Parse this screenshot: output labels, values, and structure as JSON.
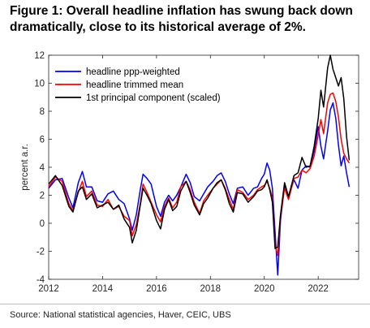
{
  "title_lines": [
    "Figure 1: Overall headline inflation has swung back down",
    "dramatically, close to its historical average of 2%."
  ],
  "source": "Source: National statistical agencies, Haver, CEIC, UBS",
  "chart_data": {
    "type": "line",
    "title": "",
    "xlabel": "",
    "ylabel": "percent a.r.",
    "xlim": [
      2012,
      2023.5
    ],
    "ylim": [
      -4,
      12
    ],
    "x_ticks": [
      2012,
      2014,
      2016,
      2018,
      2020,
      2022
    ],
    "y_ticks": [
      -4,
      -2,
      0,
      2,
      4,
      6,
      8,
      10,
      12
    ],
    "grid": false,
    "legend_position": "top-left",
    "series": [
      {
        "name": "headline ppp-weighted",
        "color": "#0000ff",
        "points": [
          [
            2012.0,
            2.5
          ],
          [
            2012.25,
            3.1
          ],
          [
            2012.5,
            3.2
          ],
          [
            2012.75,
            1.8
          ],
          [
            2012.9,
            1.1
          ],
          [
            2013.1,
            2.9
          ],
          [
            2013.25,
            3.7
          ],
          [
            2013.4,
            2.6
          ],
          [
            2013.6,
            2.6
          ],
          [
            2013.8,
            1.6
          ],
          [
            2014.0,
            1.5
          ],
          [
            2014.2,
            2.1
          ],
          [
            2014.4,
            2.3
          ],
          [
            2014.6,
            1.7
          ],
          [
            2014.8,
            1.4
          ],
          [
            2015.0,
            0.3
          ],
          [
            2015.1,
            -0.5
          ],
          [
            2015.25,
            0.6
          ],
          [
            2015.4,
            2.4
          ],
          [
            2015.5,
            3.5
          ],
          [
            2015.65,
            3.2
          ],
          [
            2015.8,
            2.8
          ],
          [
            2016.0,
            1.2
          ],
          [
            2016.15,
            0.5
          ],
          [
            2016.3,
            1.5
          ],
          [
            2016.45,
            2.0
          ],
          [
            2016.6,
            1.6
          ],
          [
            2016.75,
            2.0
          ],
          [
            2016.9,
            2.6
          ],
          [
            2017.1,
            3.5
          ],
          [
            2017.25,
            2.9
          ],
          [
            2017.4,
            1.9
          ],
          [
            2017.6,
            1.6
          ],
          [
            2017.75,
            2.1
          ],
          [
            2017.9,
            2.6
          ],
          [
            2018.1,
            3.0
          ],
          [
            2018.25,
            3.4
          ],
          [
            2018.4,
            3.6
          ],
          [
            2018.55,
            3.0
          ],
          [
            2018.7,
            2.1
          ],
          [
            2018.85,
            1.4
          ],
          [
            2019.0,
            2.5
          ],
          [
            2019.2,
            2.6
          ],
          [
            2019.4,
            2.0
          ],
          [
            2019.6,
            2.5
          ],
          [
            2019.75,
            2.6
          ],
          [
            2019.9,
            3.2
          ],
          [
            2020.0,
            3.5
          ],
          [
            2020.1,
            4.3
          ],
          [
            2020.2,
            3.8
          ],
          [
            2020.3,
            2.5
          ],
          [
            2020.4,
            -0.6
          ],
          [
            2020.5,
            -3.7
          ],
          [
            2020.6,
            0.2
          ],
          [
            2020.75,
            2.7
          ],
          [
            2020.9,
            1.9
          ],
          [
            2021.1,
            3.1
          ],
          [
            2021.25,
            2.5
          ],
          [
            2021.4,
            3.8
          ],
          [
            2021.55,
            4.1
          ],
          [
            2021.7,
            4.0
          ],
          [
            2021.85,
            5.2
          ],
          [
            2022.0,
            6.9
          ],
          [
            2022.1,
            5.5
          ],
          [
            2022.2,
            4.6
          ],
          [
            2022.35,
            6.6
          ],
          [
            2022.45,
            8.1
          ],
          [
            2022.55,
            8.6
          ],
          [
            2022.65,
            7.5
          ],
          [
            2022.75,
            5.6
          ],
          [
            2022.85,
            4.1
          ],
          [
            2022.95,
            4.8
          ],
          [
            2023.05,
            3.6
          ],
          [
            2023.15,
            2.6
          ]
        ]
      },
      {
        "name": "headline trimmed mean",
        "color": "#ff0000",
        "points": [
          [
            2012.0,
            2.6
          ],
          [
            2012.25,
            3.3
          ],
          [
            2012.5,
            3.0
          ],
          [
            2012.75,
            1.4
          ],
          [
            2012.9,
            0.9
          ],
          [
            2013.1,
            2.2
          ],
          [
            2013.25,
            3.0
          ],
          [
            2013.4,
            1.9
          ],
          [
            2013.6,
            2.3
          ],
          [
            2013.8,
            1.3
          ],
          [
            2014.0,
            1.2
          ],
          [
            2014.2,
            1.7
          ],
          [
            2014.4,
            1.0
          ],
          [
            2014.6,
            1.2
          ],
          [
            2014.8,
            0.5
          ],
          [
            2015.0,
            0.2
          ],
          [
            2015.1,
            -0.9
          ],
          [
            2015.25,
            -0.1
          ],
          [
            2015.4,
            1.4
          ],
          [
            2015.5,
            2.8
          ],
          [
            2015.65,
            2.2
          ],
          [
            2015.8,
            1.5
          ],
          [
            2016.0,
            0.6
          ],
          [
            2016.15,
            0.1
          ],
          [
            2016.3,
            1.2
          ],
          [
            2016.45,
            1.8
          ],
          [
            2016.6,
            1.1
          ],
          [
            2016.75,
            1.5
          ],
          [
            2016.9,
            2.6
          ],
          [
            2017.1,
            3.0
          ],
          [
            2017.25,
            2.4
          ],
          [
            2017.4,
            1.5
          ],
          [
            2017.6,
            0.7
          ],
          [
            2017.75,
            1.6
          ],
          [
            2017.9,
            2.0
          ],
          [
            2018.1,
            2.5
          ],
          [
            2018.25,
            2.8
          ],
          [
            2018.4,
            3.1
          ],
          [
            2018.55,
            2.5
          ],
          [
            2018.7,
            1.7
          ],
          [
            2018.85,
            1.0
          ],
          [
            2019.0,
            2.4
          ],
          [
            2019.2,
            2.2
          ],
          [
            2019.4,
            1.7
          ],
          [
            2019.6,
            2.0
          ],
          [
            2019.75,
            2.4
          ],
          [
            2019.9,
            2.6
          ],
          [
            2020.0,
            2.7
          ],
          [
            2020.1,
            3.0
          ],
          [
            2020.2,
            2.5
          ],
          [
            2020.3,
            1.8
          ],
          [
            2020.4,
            -1.5
          ],
          [
            2020.5,
            -2.3
          ],
          [
            2020.6,
            0.4
          ],
          [
            2020.75,
            2.5
          ],
          [
            2020.9,
            1.7
          ],
          [
            2021.1,
            3.2
          ],
          [
            2021.25,
            3.3
          ],
          [
            2021.4,
            3.8
          ],
          [
            2021.55,
            3.6
          ],
          [
            2021.7,
            3.9
          ],
          [
            2021.85,
            4.8
          ],
          [
            2022.0,
            6.3
          ],
          [
            2022.1,
            7.4
          ],
          [
            2022.2,
            6.4
          ],
          [
            2022.35,
            8.6
          ],
          [
            2022.45,
            9.2
          ],
          [
            2022.55,
            9.3
          ],
          [
            2022.65,
            8.7
          ],
          [
            2022.75,
            7.6
          ],
          [
            2022.85,
            6.0
          ],
          [
            2022.95,
            5.0
          ],
          [
            2023.05,
            4.6
          ],
          [
            2023.15,
            4.3
          ]
        ]
      },
      {
        "name": "1st principal component (scaled)",
        "color": "#000000",
        "points": [
          [
            2012.0,
            2.8
          ],
          [
            2012.25,
            3.4
          ],
          [
            2012.5,
            2.7
          ],
          [
            2012.75,
            1.2
          ],
          [
            2012.9,
            0.8
          ],
          [
            2013.1,
            2.3
          ],
          [
            2013.25,
            2.6
          ],
          [
            2013.4,
            1.7
          ],
          [
            2013.6,
            2.1
          ],
          [
            2013.8,
            1.1
          ],
          [
            2014.0,
            1.3
          ],
          [
            2014.2,
            1.5
          ],
          [
            2014.4,
            1.0
          ],
          [
            2014.6,
            1.3
          ],
          [
            2014.8,
            0.3
          ],
          [
            2015.0,
            -0.3
          ],
          [
            2015.1,
            -1.4
          ],
          [
            2015.25,
            -0.5
          ],
          [
            2015.4,
            1.3
          ],
          [
            2015.5,
            2.5
          ],
          [
            2015.65,
            2.0
          ],
          [
            2015.8,
            1.4
          ],
          [
            2016.0,
            0.2
          ],
          [
            2016.15,
            -0.4
          ],
          [
            2016.3,
            1.0
          ],
          [
            2016.45,
            1.7
          ],
          [
            2016.6,
            0.9
          ],
          [
            2016.75,
            1.2
          ],
          [
            2016.9,
            2.3
          ],
          [
            2017.1,
            3.0
          ],
          [
            2017.25,
            2.2
          ],
          [
            2017.4,
            1.3
          ],
          [
            2017.6,
            0.6
          ],
          [
            2017.75,
            1.4
          ],
          [
            2017.9,
            1.8
          ],
          [
            2018.1,
            2.5
          ],
          [
            2018.25,
            2.9
          ],
          [
            2018.4,
            3.1
          ],
          [
            2018.55,
            2.4
          ],
          [
            2018.7,
            1.4
          ],
          [
            2018.85,
            0.8
          ],
          [
            2019.0,
            2.2
          ],
          [
            2019.2,
            2.1
          ],
          [
            2019.4,
            1.5
          ],
          [
            2019.6,
            1.9
          ],
          [
            2019.75,
            2.3
          ],
          [
            2019.9,
            2.4
          ],
          [
            2020.0,
            2.6
          ],
          [
            2020.1,
            3.1
          ],
          [
            2020.2,
            2.4
          ],
          [
            2020.3,
            1.5
          ],
          [
            2020.4,
            -1.8
          ],
          [
            2020.5,
            -1.7
          ],
          [
            2020.6,
            0.6
          ],
          [
            2020.75,
            2.9
          ],
          [
            2020.9,
            1.9
          ],
          [
            2021.1,
            3.4
          ],
          [
            2021.25,
            3.6
          ],
          [
            2021.4,
            4.7
          ],
          [
            2021.55,
            4.0
          ],
          [
            2021.7,
            4.1
          ],
          [
            2021.85,
            5.5
          ],
          [
            2022.0,
            7.5
          ],
          [
            2022.1,
            9.5
          ],
          [
            2022.2,
            8.3
          ],
          [
            2022.35,
            11.1
          ],
          [
            2022.45,
            12.0
          ],
          [
            2022.55,
            11.0
          ],
          [
            2022.65,
            10.4
          ],
          [
            2022.75,
            9.8
          ],
          [
            2022.85,
            10.4
          ],
          [
            2022.95,
            8.9
          ],
          [
            2023.05,
            6.2
          ],
          [
            2023.15,
            4.5
          ]
        ]
      }
    ]
  }
}
